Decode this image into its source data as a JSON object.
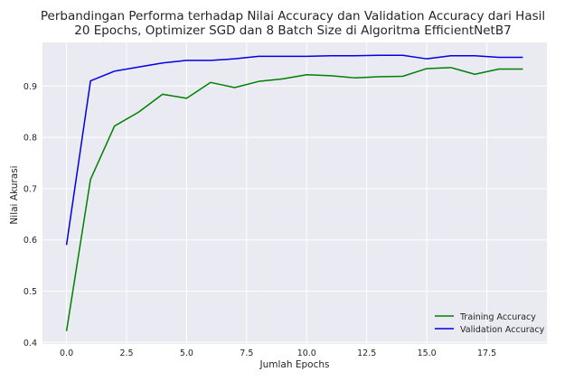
{
  "chart_data": {
    "type": "line",
    "title_line1": "Perbandingan Performa terhadap Nilai Accuracy dan Validation Accuracy dari Hasil",
    "title_line2": "20 Epochs, Optimizer SGD dan 8 Batch Size di Algoritma EfficientNetB7",
    "xlabel": "Jumlah Epochs",
    "ylabel": "Nilai Akurasi",
    "xlim": [
      -1.0,
      20.0
    ],
    "ylim": [
      0.397,
      0.985
    ],
    "xticks": [
      0.0,
      2.5,
      5.0,
      7.5,
      10.0,
      12.5,
      15.0,
      17.5
    ],
    "xtick_labels": [
      "0.0",
      "2.5",
      "5.0",
      "7.5",
      "10.0",
      "12.5",
      "15.0",
      "17.5"
    ],
    "yticks": [
      0.4,
      0.5,
      0.6,
      0.7,
      0.8,
      0.9
    ],
    "ytick_labels": [
      "0.4",
      "0.5",
      "0.6",
      "0.7",
      "0.8",
      "0.9"
    ],
    "grid": true,
    "legend_position": "lower-right",
    "x": [
      0,
      1,
      2,
      3,
      4,
      5,
      6,
      7,
      8,
      9,
      10,
      11,
      12,
      13,
      14,
      15,
      16,
      17,
      18,
      19
    ],
    "series": [
      {
        "name": "Training Accuracy",
        "color": "#008000",
        "values": [
          0.422,
          0.718,
          0.822,
          0.849,
          0.884,
          0.876,
          0.907,
          0.897,
          0.909,
          0.914,
          0.922,
          0.92,
          0.916,
          0.918,
          0.919,
          0.934,
          0.936,
          0.923,
          0.933,
          0.933
        ]
      },
      {
        "name": "Validation Accuracy",
        "color": "#0000e0",
        "values": [
          0.59,
          0.91,
          0.929,
          0.937,
          0.945,
          0.95,
          0.95,
          0.953,
          0.958,
          0.958,
          0.958,
          0.959,
          0.959,
          0.96,
          0.96,
          0.953,
          0.959,
          0.959,
          0.956,
          0.956
        ]
      }
    ]
  },
  "style": {
    "plot_background": "#eaeaf2",
    "grid_color": "#ffffff"
  }
}
